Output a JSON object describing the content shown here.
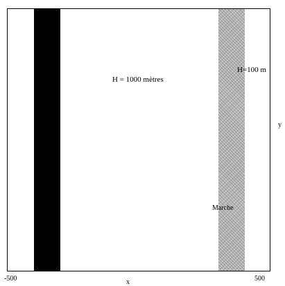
{
  "labels": {
    "main_depth": "H = 1000 mètres",
    "step_depth": "H=100 m",
    "step_name": "Marche",
    "y_axis": "y",
    "x_axis": "x",
    "x_min": "-500",
    "x_max": "500",
    "left_mark": "-"
  },
  "colors": {
    "background": "#ffffff",
    "dark_band": "#000000",
    "gray_band": "#b8b8b8"
  }
}
